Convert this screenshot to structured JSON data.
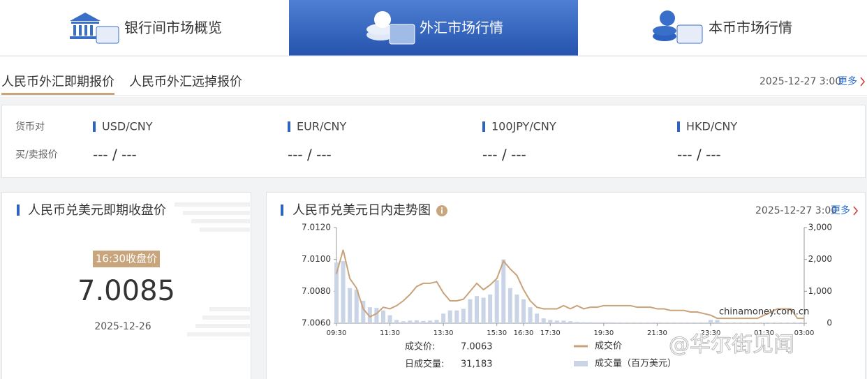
{
  "nav": [
    "银行间市场概览",
    "外汇市场行情",
    "本币市场行情"
  ],
  "subtabs": [
    "人民币外汇即期报价",
    "人民币外汇远掉报价"
  ],
  "header_date": "2025-12-27 3:00",
  "more": "更多",
  "quote_table": {
    "row_labels": [
      "货币对",
      "买/卖报价"
    ],
    "pairs": [
      "USD/CNY",
      "EUR/CNY",
      "100JPY/CNY",
      "HKD/CNY"
    ],
    "quotes": [
      "--- / ---",
      "--- / ---",
      "--- / ---",
      "--- / ---"
    ]
  },
  "close_card": {
    "title": "人民币兑美元即期收盘价",
    "badge": "16:30收盘价",
    "value": "7.0085",
    "date": "2025-12-26"
  },
  "chart_card": {
    "title": "人民币兑美元日内走势图",
    "date": "2025-12-27 3:00",
    "more": "更多"
  },
  "watermark": "@华尔街见闻",
  "chart_data": {
    "type": "combo",
    "categories": [
      "09:30",
      null,
      null,
      null,
      null,
      null,
      null,
      null,
      "11:30",
      null,
      null,
      null,
      null,
      null,
      null,
      null,
      "13:30",
      null,
      null,
      null,
      null,
      null,
      null,
      null,
      "15:30",
      null,
      null,
      null,
      "16:30",
      null,
      null,
      null,
      "17:30",
      null,
      null,
      null,
      null,
      null,
      null,
      null,
      "19:30",
      null,
      null,
      null,
      null,
      null,
      null,
      null,
      "21:30",
      null,
      null,
      null,
      null,
      null,
      null,
      null,
      "23:30",
      null,
      null,
      null,
      null,
      null,
      null,
      null,
      "01:30",
      null,
      null,
      null,
      null,
      null,
      "03:00"
    ],
    "series": [
      {
        "name": "成交价",
        "type": "line",
        "axis": "y",
        "color": "#c9a27a",
        "values": [
          7.0091,
          7.0106,
          7.0088,
          7.0082,
          7.0069,
          7.0064,
          7.0066,
          7.007,
          7.0069,
          7.0071,
          7.0074,
          7.0078,
          7.0083,
          7.0085,
          7.0085,
          7.0086,
          7.0079,
          7.0074,
          7.0074,
          7.0075,
          7.008,
          7.0085,
          7.0081,
          7.0084,
          7.0088,
          7.0099,
          7.0094,
          7.009,
          7.0081,
          7.0074,
          7.007,
          7.0069,
          7.0069,
          7.0069,
          7.0071,
          7.0069,
          7.0071,
          7.0069,
          7.007,
          7.007,
          7.0071,
          7.0071,
          7.0071,
          7.0071,
          7.0071,
          7.007,
          7.007,
          7.007,
          7.0069,
          7.0069,
          7.0068,
          7.0068,
          7.0068,
          7.0067,
          7.0067,
          7.0066,
          7.0065,
          7.0063,
          7.0063,
          7.0063,
          7.0063,
          7.0063,
          7.0063,
          7.0063,
          7.0065,
          7.0067,
          7.0069,
          7.0069,
          7.0069,
          7.0063,
          7.0063
        ]
      },
      {
        "name": "成交量（百万美元）",
        "type": "bar",
        "axis": "y2",
        "color": "#c9d4e6",
        "values": [
          1900,
          1950,
          1100,
          1050,
          700,
          500,
          480,
          400,
          250,
          100,
          60,
          80,
          90,
          70,
          80,
          100,
          300,
          400,
          400,
          450,
          750,
          850,
          800,
          900,
          1350,
          2000,
          1100,
          900,
          750,
          500,
          300,
          150,
          100,
          80,
          80,
          60,
          40,
          30,
          30,
          25,
          25,
          25,
          20,
          20,
          20,
          20,
          20,
          20,
          20,
          20,
          20,
          20,
          20,
          20,
          20,
          20,
          100,
          100,
          15,
          15,
          15,
          15,
          15,
          15,
          15,
          15,
          15,
          15,
          15,
          15,
          15
        ]
      }
    ],
    "ylim": [
      7.006,
      7.012
    ],
    "yticks": [
      {
        "value": 7.006,
        "label": "7.0060"
      },
      {
        "value": 7.008,
        "label": "7.0080"
      },
      {
        "value": 7.01,
        "label": "7.0100"
      },
      {
        "value": 7.012,
        "label": "7.0120"
      }
    ],
    "y2lim": [
      0,
      3000
    ],
    "y2ticks": [
      0,
      {
        "value": 1000,
        "label": "1,000"
      },
      {
        "value": 2000,
        "label": "2,000"
      },
      {
        "value": 3000,
        "label": "3,000"
      }
    ],
    "grid": false,
    "source": "chinamoney.com.cn",
    "stats": [
      {
        "label": "成交价:",
        "value": "7.0063"
      },
      {
        "label": "日成交量:",
        "value": "31,183"
      }
    ]
  }
}
